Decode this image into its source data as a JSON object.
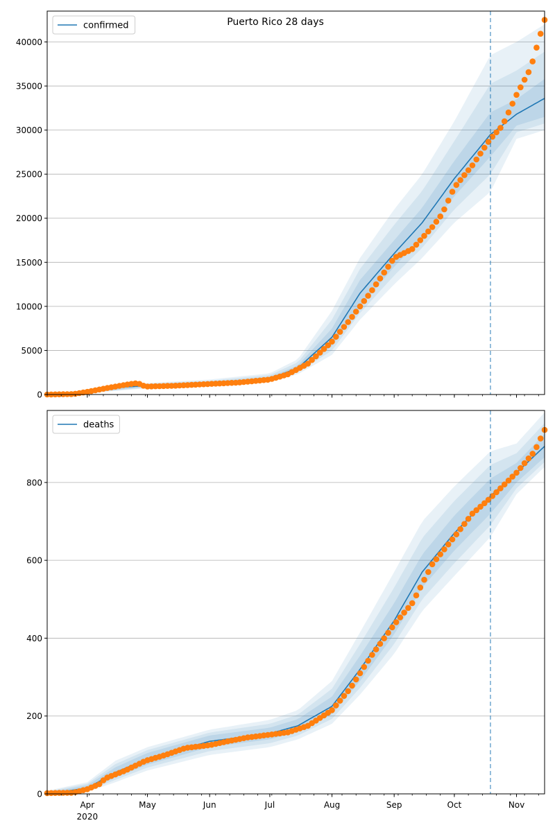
{
  "figure": {
    "title": "Puerto Rico 28 days"
  },
  "colors": {
    "fit_line": "#1f77b4",
    "observed": "#ff7f0e",
    "band": "#1f77b4",
    "grid": "#b0b0b0",
    "forecast_marker": "#1f77b4"
  },
  "x_axis": {
    "month_labels": [
      "Apr",
      "May",
      "Jun",
      "Jul",
      "Aug",
      "Sep",
      "Oct",
      "Nov"
    ],
    "month_dates": [
      "2020-04-01",
      "2020-05-01",
      "2020-06-01",
      "2020-07-01",
      "2020-08-01",
      "2020-09-01",
      "2020-10-01",
      "2020-11-01"
    ],
    "year_label": "2020",
    "xlim": [
      "2020-03-12",
      "2020-11-15"
    ],
    "forecast_start": "2020-10-19"
  },
  "chart_data": [
    {
      "type": "line",
      "legend": "confirmed",
      "legend_position": "top-left",
      "grid": "y",
      "ylim": [
        0,
        43500
      ],
      "yticks": [
        0,
        5000,
        10000,
        15000,
        20000,
        25000,
        30000,
        35000,
        40000
      ],
      "fit": [
        [
          "2020-03-12",
          0
        ],
        [
          "2020-04-01",
          300
        ],
        [
          "2020-04-15",
          800
        ],
        [
          "2020-05-01",
          1000
        ],
        [
          "2020-06-01",
          1300
        ],
        [
          "2020-07-01",
          1800
        ],
        [
          "2020-07-15",
          3000
        ],
        [
          "2020-08-01",
          6500
        ],
        [
          "2020-08-15",
          11500
        ],
        [
          "2020-09-01",
          16000
        ],
        [
          "2020-09-15",
          19500
        ],
        [
          "2020-10-01",
          24500
        ],
        [
          "2020-10-19",
          29500
        ],
        [
          "2020-11-01",
          31800
        ],
        [
          "2020-11-15",
          33600
        ]
      ],
      "band_outer": [
        [
          "2020-03-12",
          0,
          100
        ],
        [
          "2020-04-01",
          150,
          500
        ],
        [
          "2020-05-01",
          700,
          1300
        ],
        [
          "2020-06-01",
          1000,
          1700
        ],
        [
          "2020-07-01",
          1400,
          2400
        ],
        [
          "2020-07-15",
          2300,
          4000
        ],
        [
          "2020-08-01",
          4500,
          9500
        ],
        [
          "2020-08-15",
          8500,
          15500
        ],
        [
          "2020-09-01",
          12500,
          21000
        ],
        [
          "2020-09-15",
          15500,
          25000
        ],
        [
          "2020-10-01",
          19500,
          31000
        ],
        [
          "2020-10-19",
          23000,
          38500
        ],
        [
          "2020-11-01",
          29000,
          40000
        ],
        [
          "2020-11-15",
          30000,
          42000
        ]
      ],
      "band_inner": [
        [
          "2020-03-12",
          0,
          50
        ],
        [
          "2020-04-01",
          220,
          380
        ],
        [
          "2020-05-01",
          850,
          1150
        ],
        [
          "2020-06-01",
          1150,
          1450
        ],
        [
          "2020-07-01",
          1600,
          2000
        ],
        [
          "2020-07-15",
          2700,
          3300
        ],
        [
          "2020-08-01",
          5500,
          7500
        ],
        [
          "2020-08-15",
          10000,
          13000
        ],
        [
          "2020-09-01",
          14500,
          17500
        ],
        [
          "2020-09-15",
          17800,
          21200
        ],
        [
          "2020-10-01",
          22500,
          26500
        ],
        [
          "2020-10-19",
          27000,
          32000
        ],
        [
          "2020-11-01",
          30500,
          33500
        ],
        [
          "2020-11-15",
          31500,
          35800
        ]
      ],
      "observed": [
        [
          "2020-03-12",
          0
        ],
        [
          "2020-03-25",
          50
        ],
        [
          "2020-04-01",
          300
        ],
        [
          "2020-04-10",
          700
        ],
        [
          "2020-04-20",
          1100
        ],
        [
          "2020-04-26",
          1300
        ],
        [
          "2020-04-30",
          900
        ],
        [
          "2020-05-15",
          1000
        ],
        [
          "2020-06-01",
          1200
        ],
        [
          "2020-06-15",
          1350
        ],
        [
          "2020-07-01",
          1700
        ],
        [
          "2020-07-10",
          2300
        ],
        [
          "2020-07-20",
          3500
        ],
        [
          "2020-08-01",
          6000
        ],
        [
          "2020-08-10",
          8500
        ],
        [
          "2020-08-20",
          11500
        ],
        [
          "2020-09-01",
          15500
        ],
        [
          "2020-09-10",
          16500
        ],
        [
          "2020-09-20",
          19000
        ],
        [
          "2020-09-25",
          20500
        ],
        [
          "2020-10-01",
          23500
        ],
        [
          "2020-10-10",
          26000
        ],
        [
          "2020-10-19",
          29000
        ],
        [
          "2020-10-25",
          30500
        ],
        [
          "2020-11-01",
          34000
        ],
        [
          "2020-11-08",
          37000
        ],
        [
          "2020-11-15",
          42500
        ]
      ]
    },
    {
      "type": "line",
      "legend": "deaths",
      "legend_position": "top-left",
      "grid": "y",
      "ylim": [
        0,
        985
      ],
      "yticks": [
        0,
        200,
        400,
        600,
        800
      ],
      "fit": [
        [
          "2020-03-12",
          0
        ],
        [
          "2020-04-01",
          15
        ],
        [
          "2020-04-15",
          55
        ],
        [
          "2020-05-01",
          90
        ],
        [
          "2020-06-01",
          135
        ],
        [
          "2020-07-01",
          155
        ],
        [
          "2020-07-15",
          175
        ],
        [
          "2020-08-01",
          225
        ],
        [
          "2020-08-15",
          320
        ],
        [
          "2020-09-01",
          445
        ],
        [
          "2020-09-15",
          570
        ],
        [
          "2020-10-01",
          670
        ],
        [
          "2020-10-19",
          765
        ],
        [
          "2020-11-01",
          825
        ],
        [
          "2020-11-15",
          893
        ]
      ],
      "band_outer": [
        [
          "2020-03-12",
          0,
          8
        ],
        [
          "2020-04-01",
          5,
          30
        ],
        [
          "2020-04-15",
          30,
          85
        ],
        [
          "2020-05-01",
          60,
          120
        ],
        [
          "2020-06-01",
          100,
          165
        ],
        [
          "2020-07-01",
          120,
          190
        ],
        [
          "2020-07-15",
          140,
          215
        ],
        [
          "2020-08-01",
          180,
          290
        ],
        [
          "2020-08-15",
          255,
          415
        ],
        [
          "2020-09-01",
          360,
          570
        ],
        [
          "2020-09-15",
          470,
          700
        ],
        [
          "2020-10-01",
          560,
          790
        ],
        [
          "2020-10-19",
          660,
          880
        ],
        [
          "2020-11-01",
          770,
          900
        ],
        [
          "2020-11-15",
          840,
          980
        ]
      ],
      "band_inner": [
        [
          "2020-03-12",
          0,
          4
        ],
        [
          "2020-04-01",
          10,
          22
        ],
        [
          "2020-04-15",
          42,
          68
        ],
        [
          "2020-05-01",
          75,
          105
        ],
        [
          "2020-06-01",
          120,
          150
        ],
        [
          "2020-07-01",
          140,
          170
        ],
        [
          "2020-07-15",
          160,
          192
        ],
        [
          "2020-08-01",
          205,
          250
        ],
        [
          "2020-08-15",
          290,
          355
        ],
        [
          "2020-09-01",
          410,
          490
        ],
        [
          "2020-09-15",
          530,
          615
        ],
        [
          "2020-10-01",
          625,
          715
        ],
        [
          "2020-10-19",
          720,
          810
        ],
        [
          "2020-11-01",
          800,
          850
        ],
        [
          "2020-11-15",
          865,
          925
        ]
      ],
      "observed": [
        [
          "2020-03-12",
          2
        ],
        [
          "2020-03-25",
          3
        ],
        [
          "2020-04-01",
          12
        ],
        [
          "2020-04-07",
          25
        ],
        [
          "2020-04-10",
          40
        ],
        [
          "2020-04-20",
          60
        ],
        [
          "2020-04-30",
          85
        ],
        [
          "2020-05-10",
          100
        ],
        [
          "2020-05-20",
          118
        ],
        [
          "2020-06-01",
          125
        ],
        [
          "2020-06-10",
          135
        ],
        [
          "2020-06-20",
          145
        ],
        [
          "2020-07-01",
          152
        ],
        [
          "2020-07-10",
          158
        ],
        [
          "2020-07-20",
          175
        ],
        [
          "2020-08-01",
          215
        ],
        [
          "2020-08-10",
          270
        ],
        [
          "2020-08-20",
          350
        ],
        [
          "2020-09-01",
          435
        ],
        [
          "2020-09-10",
          490
        ],
        [
          "2020-09-20",
          590
        ],
        [
          "2020-10-01",
          660
        ],
        [
          "2020-10-10",
          720
        ],
        [
          "2020-10-19",
          760
        ],
        [
          "2020-10-25",
          790
        ],
        [
          "2020-11-01",
          825
        ],
        [
          "2020-11-10",
          880
        ],
        [
          "2020-11-15",
          935
        ]
      ]
    }
  ]
}
